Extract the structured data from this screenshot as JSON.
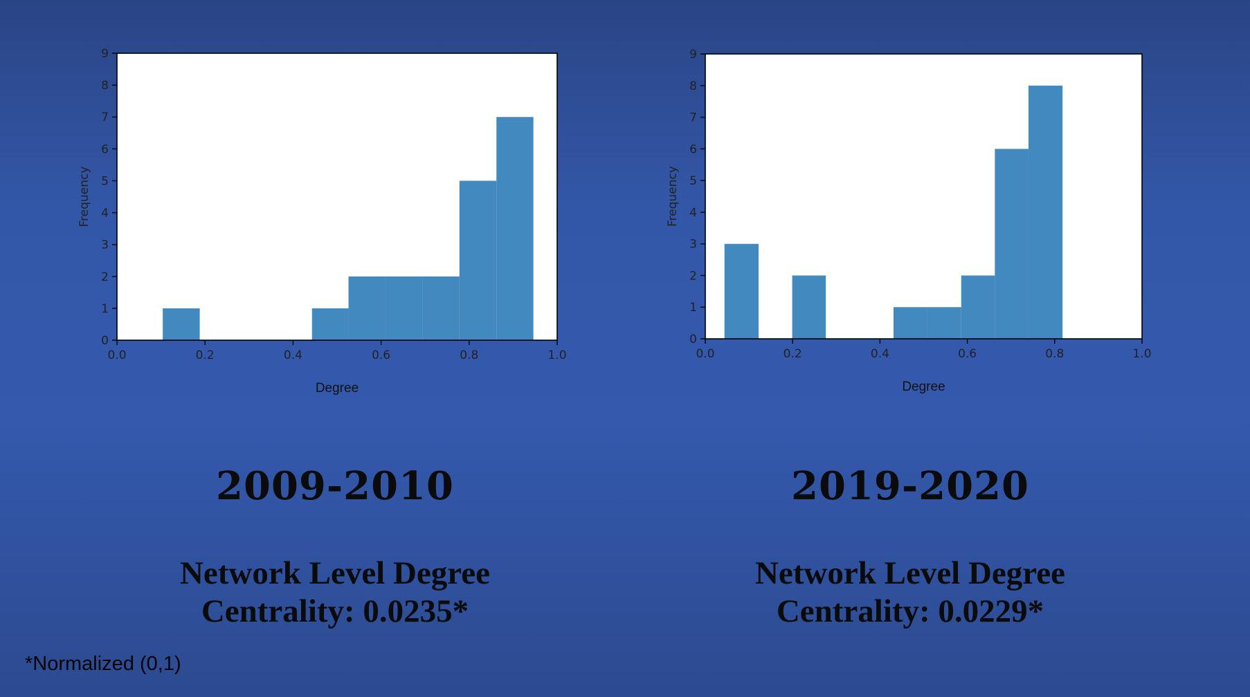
{
  "chart_data": [
    {
      "type": "bar",
      "xlabel": "Degree",
      "ylabel": "Frequency",
      "xlim": [
        0.0,
        1.0
      ],
      "ylim": [
        0,
        9
      ],
      "x_ticks": [
        "0.0",
        "0.2",
        "0.4",
        "0.6",
        "0.8",
        "1.0"
      ],
      "y_ticks": [
        "0",
        "1",
        "2",
        "3",
        "4",
        "5",
        "6",
        "7",
        "8",
        "9"
      ],
      "bins": [
        {
          "x0": 0.104,
          "x1": 0.188,
          "value": 1
        },
        {
          "x0": 0.188,
          "x1": 0.271,
          "value": 0
        },
        {
          "x0": 0.271,
          "x1": 0.355,
          "value": 0
        },
        {
          "x0": 0.355,
          "x1": 0.443,
          "value": 0
        },
        {
          "x0": 0.443,
          "x1": 0.526,
          "value": 1
        },
        {
          "x0": 0.526,
          "x1": 0.61,
          "value": 2
        },
        {
          "x0": 0.61,
          "x1": 0.694,
          "value": 2
        },
        {
          "x0": 0.694,
          "x1": 0.778,
          "value": 2
        },
        {
          "x0": 0.778,
          "x1": 0.862,
          "value": 5
        },
        {
          "x0": 0.862,
          "x1": 0.946,
          "value": 7
        }
      ],
      "grid": false
    },
    {
      "type": "bar",
      "xlabel": "Degree",
      "ylabel": "Frequency",
      "xlim": [
        0.0,
        1.0
      ],
      "ylim": [
        0,
        9
      ],
      "x_ticks": [
        "0.0",
        "0.2",
        "0.4",
        "0.6",
        "0.8",
        "1.0"
      ],
      "y_ticks": [
        "0",
        "1",
        "2",
        "3",
        "4",
        "5",
        "6",
        "7",
        "8",
        "9"
      ],
      "bins": [
        {
          "x0": 0.044,
          "x1": 0.122,
          "value": 3
        },
        {
          "x0": 0.122,
          "x1": 0.199,
          "value": 0
        },
        {
          "x0": 0.199,
          "x1": 0.276,
          "value": 2
        },
        {
          "x0": 0.276,
          "x1": 0.354,
          "value": 0
        },
        {
          "x0": 0.354,
          "x1": 0.431,
          "value": 0
        },
        {
          "x0": 0.431,
          "x1": 0.508,
          "value": 1
        },
        {
          "x0": 0.508,
          "x1": 0.586,
          "value": 1
        },
        {
          "x0": 0.586,
          "x1": 0.663,
          "value": 2
        },
        {
          "x0": 0.663,
          "x1": 0.74,
          "value": 6
        },
        {
          "x0": 0.74,
          "x1": 0.818,
          "value": 8
        }
      ],
      "grid": false
    }
  ],
  "panels": [
    {
      "period": "2009-2010",
      "centrality_line1": "Network Level Degree",
      "centrality_line2": "Centrality: 0.0235*"
    },
    {
      "period": "2019-2020",
      "centrality_line1": "Network Level Degree",
      "centrality_line2": "Centrality: 0.0229*"
    }
  ],
  "footnote": "*Normalized (0,1)",
  "colors": {
    "bar": "#4289c0",
    "background": "#3357a8",
    "plot_background": "#ffffff"
  }
}
